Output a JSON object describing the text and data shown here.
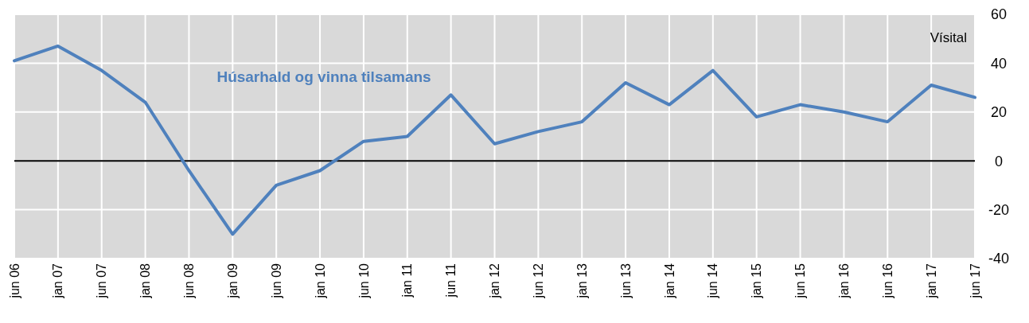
{
  "chart_data": {
    "type": "line",
    "ylabel": "Vísital",
    "categories": [
      "jun 06",
      "jan 07",
      "jun 07",
      "jan 08",
      "jun 08",
      "jan 09",
      "jun 09",
      "jan 10",
      "jun 10",
      "jan 11",
      "jun 11",
      "jan 12",
      "jun 12",
      "jan 13",
      "jun 13",
      "jan 14",
      "jun 14",
      "jan 15",
      "jun 15",
      "jan 16",
      "jun 16",
      "jan 17",
      "jun 17"
    ],
    "series": [
      {
        "name": "Húsarhald og vinna tilsamans",
        "color": "#4f81bd",
        "values": [
          41,
          47,
          37,
          24,
          -4,
          -30,
          -10,
          -4,
          8,
          10,
          27,
          7,
          12,
          16,
          32,
          23,
          37,
          18,
          23,
          20,
          16,
          31,
          26
        ]
      }
    ],
    "ylim": [
      -40,
      60
    ],
    "yticks": [
      -40,
      -20,
      0,
      20,
      40,
      60
    ],
    "grid": true,
    "legend": false,
    "marker": "none",
    "line_style": "solid",
    "ref_lines": [
      {
        "axis": "y",
        "value": 0,
        "color": "#000000"
      }
    ]
  }
}
